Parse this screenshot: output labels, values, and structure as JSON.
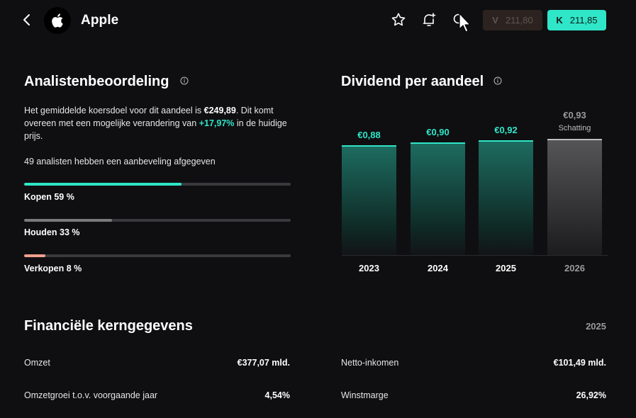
{
  "header": {
    "title": "Apple",
    "sell": {
      "letter": "V",
      "price": "211,80"
    },
    "buy": {
      "letter": "K",
      "price": "211,85"
    }
  },
  "analysts": {
    "title": "Analistenbeoordeling",
    "text_1": "Het gemiddelde koersdoel voor dit aandeel is ",
    "target": "€249,89",
    "text_2": ". Dit komt overeen met een mogelijke verandering van ",
    "change": "+17,97%",
    "text_3": " in de huidige prijs.",
    "count_text": "49 analisten hebben een aanbeveling afgegeven",
    "ratings": [
      {
        "label": "Kopen 59 %",
        "percent": 59,
        "color": "#2fe6c8"
      },
      {
        "label": "Houden 33 %",
        "percent": 33,
        "color": "#7a7a7c"
      },
      {
        "label": "Verkopen 8 %",
        "percent": 8,
        "color": "#f0a08e"
      }
    ]
  },
  "dividend": {
    "title": "Dividend per aandeel"
  },
  "chart_data": {
    "type": "bar",
    "categories": [
      "2023",
      "2024",
      "2025",
      "2026"
    ],
    "values": [
      0.88,
      0.9,
      0.92,
      0.93
    ],
    "labels": [
      "€0,88",
      "€0,90",
      "€0,92",
      "€0,93"
    ],
    "estimate_label": "Schatting",
    "estimate_index": 3,
    "colors": {
      "actual": "#2fe6c8",
      "estimate": "#9a9a9a"
    }
  },
  "financials": {
    "title": "Financiële kerngegevens",
    "year": "2025",
    "rows": [
      {
        "label": "Omzet",
        "value": "€377,07 mld."
      },
      {
        "label": "Netto-inkomen",
        "value": "€101,49 mld."
      },
      {
        "label": "Omzetgroei t.o.v. voorgaande jaar",
        "value": "4,54%"
      },
      {
        "label": "Winstmarge",
        "value": "26,92%"
      }
    ]
  }
}
